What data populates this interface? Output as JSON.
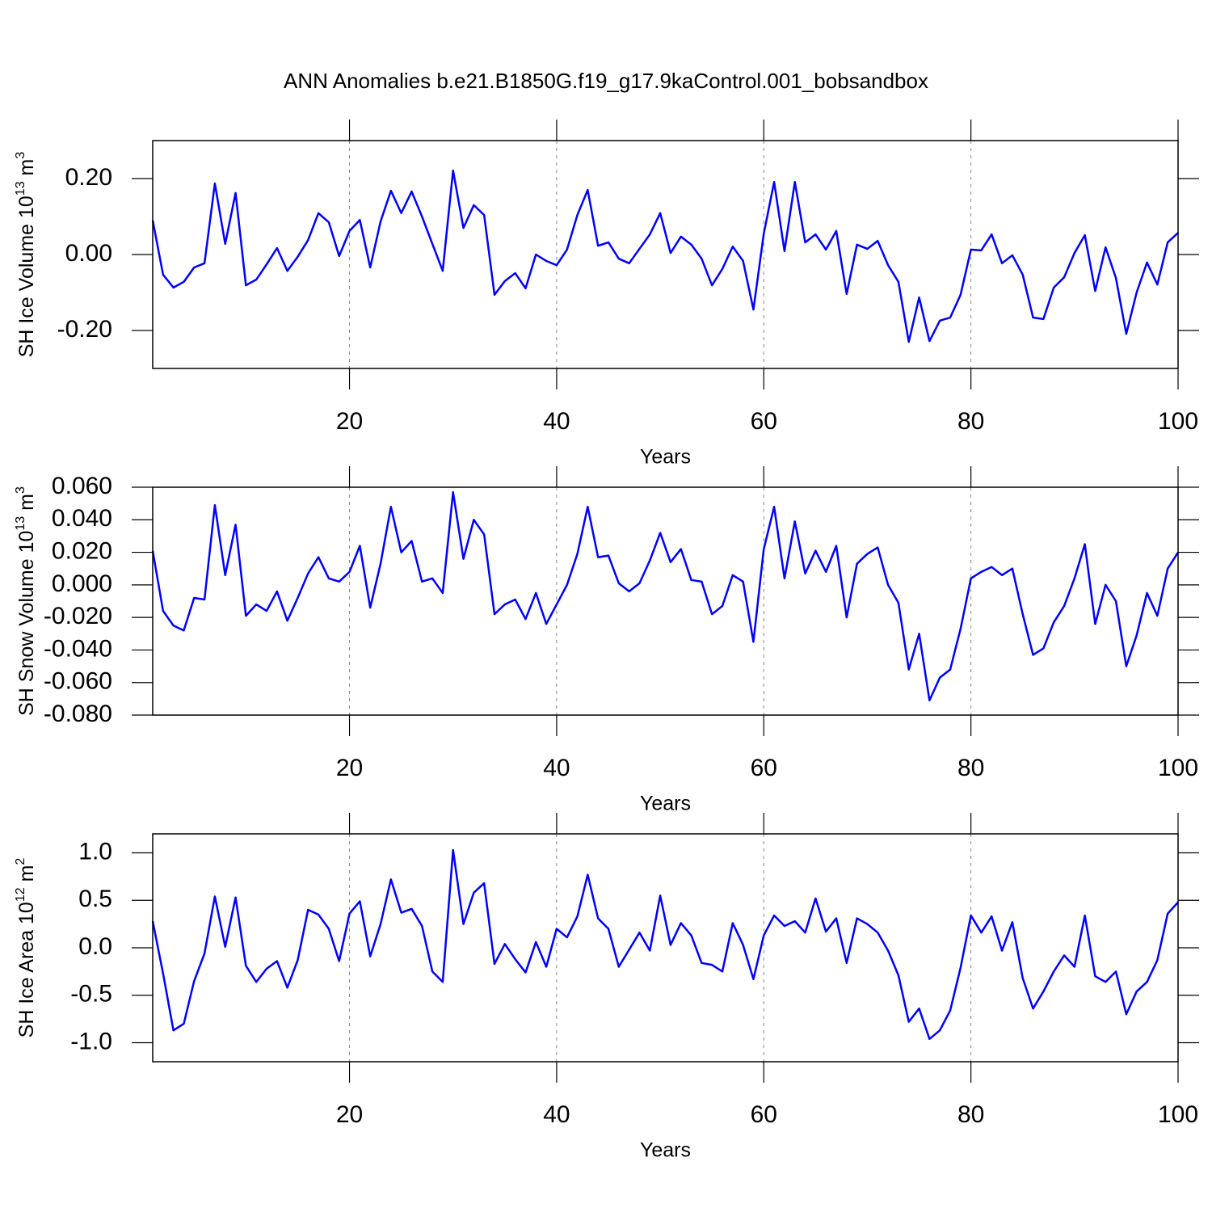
{
  "chart_data": [
    {
      "type": "line",
      "title": "ANN Anomalies b.e21.B1850G.f19_g17.9kaControl.001_bobsandbox",
      "xlabel": "Years",
      "ylabel": [
        "SH Ice Volume 10",
        "13",
        " m",
        "3"
      ],
      "xlim": [
        1,
        100
      ],
      "xticks": [
        20,
        40,
        60,
        80,
        100
      ],
      "grid": true,
      "ylim": [
        -0.3,
        0.3
      ],
      "yticks": [
        {
          "value": -0.2,
          "label": "-0.20"
        },
        {
          "value": 0,
          "label": "0.00"
        },
        {
          "value": 0.2,
          "label": "0.20"
        }
      ],
      "x": [
        1,
        2,
        3,
        4,
        5,
        6,
        7,
        8,
        9,
        10,
        11,
        12,
        13,
        14,
        15,
        16,
        17,
        18,
        19,
        20,
        21,
        22,
        23,
        24,
        25,
        26,
        27,
        28,
        29,
        30,
        31,
        32,
        33,
        34,
        35,
        36,
        37,
        38,
        39,
        40,
        41,
        42,
        43,
        44,
        45,
        46,
        47,
        48,
        49,
        50,
        51,
        52,
        53,
        54,
        55,
        56,
        57,
        58,
        59,
        60,
        61,
        62,
        63,
        64,
        65,
        66,
        67,
        68,
        69,
        70,
        71,
        72,
        73,
        74,
        75,
        76,
        77,
        78,
        79,
        80,
        81,
        82,
        83,
        84,
        85,
        86,
        87,
        88,
        89,
        90,
        91,
        92,
        93,
        94,
        95,
        96,
        97,
        98,
        99,
        100
      ],
      "series": [
        {
          "color": "#0000ff",
          "values": [
            0.09,
            -0.053,
            -0.087,
            -0.072,
            -0.034,
            -0.023,
            0.187,
            0.028,
            0.162,
            -0.081,
            -0.066,
            -0.026,
            0.017,
            -0.043,
            -0.006,
            0.038,
            0.109,
            0.085,
            -0.004,
            0.062,
            0.091,
            -0.034,
            0.087,
            0.168,
            0.109,
            0.166,
            0.1,
            0.028,
            -0.043,
            0.221,
            0.07,
            0.13,
            0.104,
            -0.106,
            -0.07,
            -0.049,
            -0.089,
            0.0,
            -0.017,
            -0.028,
            0.013,
            0.104,
            0.17,
            0.023,
            0.032,
            -0.011,
            -0.023,
            0.015,
            0.053,
            0.109,
            0.004,
            0.047,
            0.026,
            -0.011,
            -0.081,
            -0.038,
            0.021,
            -0.017,
            -0.145,
            0.055,
            0.191,
            0.009,
            0.191,
            0.032,
            0.053,
            0.013,
            0.062,
            -0.104,
            0.026,
            0.015,
            0.036,
            -0.028,
            -0.072,
            -0.23,
            -0.113,
            -0.228,
            -0.174,
            -0.166,
            -0.106,
            0.013,
            0.011,
            0.053,
            -0.023,
            -0.002,
            -0.053,
            -0.166,
            -0.17,
            -0.087,
            -0.06,
            0.004,
            0.051,
            -0.096,
            0.019,
            -0.062,
            -0.209,
            -0.1,
            -0.021,
            -0.079,
            0.032,
            0.057
          ]
        }
      ]
    },
    {
      "type": "line",
      "xlabel": "Years",
      "ylabel": [
        "SH Snow Volume 10",
        "13",
        " m",
        "3"
      ],
      "xlim": [
        1,
        100
      ],
      "xticks": [
        20,
        40,
        60,
        80,
        100
      ],
      "grid": true,
      "ylim": [
        -0.08,
        0.06
      ],
      "yticks": [
        {
          "value": -0.08,
          "label": "-0.080"
        },
        {
          "value": -0.06,
          "label": "-0.060"
        },
        {
          "value": -0.04,
          "label": "-0.040"
        },
        {
          "value": -0.02,
          "label": "-0.020"
        },
        {
          "value": 0,
          "label": "0.000"
        },
        {
          "value": 0.02,
          "label": "0.020"
        },
        {
          "value": 0.04,
          "label": "0.040"
        },
        {
          "value": 0.06,
          "label": "0.060"
        }
      ],
      "x": [
        1,
        2,
        3,
        4,
        5,
        6,
        7,
        8,
        9,
        10,
        11,
        12,
        13,
        14,
        15,
        16,
        17,
        18,
        19,
        20,
        21,
        22,
        23,
        24,
        25,
        26,
        27,
        28,
        29,
        30,
        31,
        32,
        33,
        34,
        35,
        36,
        37,
        38,
        39,
        40,
        41,
        42,
        43,
        44,
        45,
        46,
        47,
        48,
        49,
        50,
        51,
        52,
        53,
        54,
        55,
        56,
        57,
        58,
        59,
        60,
        61,
        62,
        63,
        64,
        65,
        66,
        67,
        68,
        69,
        70,
        71,
        72,
        73,
        74,
        75,
        76,
        77,
        78,
        79,
        80,
        81,
        82,
        83,
        84,
        85,
        86,
        87,
        88,
        89,
        90,
        91,
        92,
        93,
        94,
        95,
        96,
        97,
        98,
        99,
        100
      ],
      "series": [
        {
          "color": "#0000ff",
          "values": [
            0.021,
            -0.016,
            -0.025,
            -0.028,
            -0.008,
            -0.009,
            0.049,
            0.006,
            0.037,
            -0.019,
            -0.012,
            -0.016,
            -0.004,
            -0.022,
            -0.008,
            0.007,
            0.017,
            0.004,
            0.002,
            0.008,
            0.024,
            -0.014,
            0.013,
            0.048,
            0.02,
            0.027,
            0.002,
            0.004,
            -0.005,
            0.057,
            0.016,
            0.04,
            0.031,
            -0.018,
            -0.012,
            -0.009,
            -0.021,
            -0.005,
            -0.024,
            -0.012,
            0.0,
            0.019,
            0.048,
            0.017,
            0.018,
            0.001,
            -0.004,
            0.001,
            0.015,
            0.032,
            0.014,
            0.022,
            0.003,
            0.002,
            -0.018,
            -0.013,
            0.006,
            0.002,
            -0.035,
            0.022,
            0.048,
            0.004,
            0.039,
            0.007,
            0.021,
            0.008,
            0.024,
            -0.02,
            0.013,
            0.019,
            0.023,
            0.0,
            -0.011,
            -0.052,
            -0.03,
            -0.071,
            -0.057,
            -0.052,
            -0.027,
            0.004,
            0.008,
            0.011,
            0.006,
            0.01,
            -0.018,
            -0.043,
            -0.039,
            -0.023,
            -0.013,
            0.004,
            0.025,
            -0.024,
            0.0,
            -0.01,
            -0.05,
            -0.031,
            -0.005,
            -0.019,
            0.01,
            0.02
          ]
        }
      ]
    },
    {
      "type": "line",
      "xlabel": "Years",
      "ylabel": [
        "SH Ice Area 10",
        "12",
        " m",
        "2"
      ],
      "xlim": [
        1,
        100
      ],
      "xticks": [
        20,
        40,
        60,
        80,
        100
      ],
      "grid": true,
      "ylim": [
        -1.2,
        1.2
      ],
      "yticks": [
        {
          "value": -1,
          "label": "-1.0"
        },
        -0.5,
        {
          "value": 0,
          "label": "0.0"
        },
        0.5,
        {
          "value": 1,
          "label": "1.0"
        }
      ],
      "x": [
        1,
        2,
        3,
        4,
        5,
        6,
        7,
        8,
        9,
        10,
        11,
        12,
        13,
        14,
        15,
        16,
        17,
        18,
        19,
        20,
        21,
        22,
        23,
        24,
        25,
        26,
        27,
        28,
        29,
        30,
        31,
        32,
        33,
        34,
        35,
        36,
        37,
        38,
        39,
        40,
        41,
        42,
        43,
        44,
        45,
        46,
        47,
        48,
        49,
        50,
        51,
        52,
        53,
        54,
        55,
        56,
        57,
        58,
        59,
        60,
        61,
        62,
        63,
        64,
        65,
        66,
        67,
        68,
        69,
        70,
        71,
        72,
        73,
        74,
        75,
        76,
        77,
        78,
        79,
        80,
        81,
        82,
        83,
        84,
        85,
        86,
        87,
        88,
        89,
        90,
        91,
        92,
        93,
        94,
        95,
        96,
        97,
        98,
        99,
        100
      ],
      "series": [
        {
          "color": "#0000ff",
          "values": [
            0.28,
            -0.27,
            -0.87,
            -0.8,
            -0.35,
            -0.06,
            0.54,
            0.01,
            0.53,
            -0.19,
            -0.36,
            -0.22,
            -0.14,
            -0.42,
            -0.13,
            0.4,
            0.35,
            0.2,
            -0.14,
            0.36,
            0.49,
            -0.09,
            0.25,
            0.72,
            0.37,
            0.41,
            0.23,
            -0.25,
            -0.36,
            1.03,
            0.25,
            0.58,
            0.68,
            -0.17,
            0.04,
            -0.12,
            -0.26,
            0.06,
            -0.2,
            0.2,
            0.11,
            0.33,
            0.77,
            0.31,
            0.2,
            -0.2,
            -0.02,
            0.16,
            -0.03,
            0.55,
            0.03,
            0.26,
            0.13,
            -0.16,
            -0.18,
            -0.25,
            0.26,
            0.03,
            -0.33,
            0.13,
            0.34,
            0.23,
            0.28,
            0.16,
            0.52,
            0.17,
            0.31,
            -0.16,
            0.31,
            0.25,
            0.16,
            -0.03,
            -0.29,
            -0.78,
            -0.64,
            -0.96,
            -0.87,
            -0.66,
            -0.21,
            0.34,
            0.16,
            0.33,
            -0.03,
            0.27,
            -0.32,
            -0.64,
            -0.46,
            -0.25,
            -0.08,
            -0.2,
            0.34,
            -0.3,
            -0.36,
            -0.25,
            -0.7,
            -0.46,
            -0.36,
            -0.13,
            0.36,
            0.48
          ]
        }
      ]
    }
  ]
}
